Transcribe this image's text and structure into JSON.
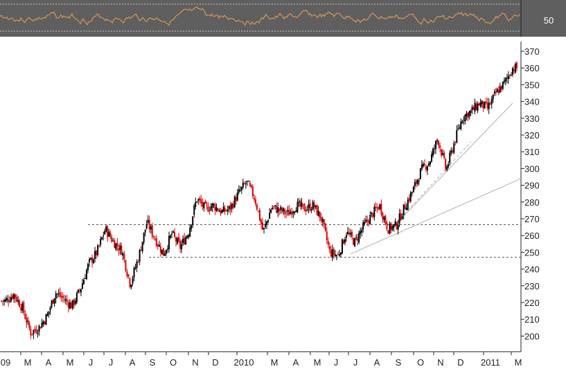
{
  "chart_data": {
    "type": "candlestick",
    "title": "",
    "xlabel": "",
    "ylabel": "",
    "ylim": [
      190,
      378
    ],
    "y_ticks": [
      200,
      210,
      220,
      230,
      240,
      250,
      260,
      270,
      280,
      290,
      300,
      310,
      320,
      330,
      340,
      350,
      360,
      370
    ],
    "x_tick_labels": [
      "09",
      "M",
      "A",
      "M",
      "J",
      "J",
      "A",
      "S",
      "O",
      "N",
      "D",
      "2010",
      "M",
      "A",
      "M",
      "J",
      "J",
      "A",
      "S",
      "O",
      "N",
      "D",
      "2011",
      "M"
    ],
    "grid": false,
    "legend": "none",
    "colors": {
      "up": "#000000",
      "down": "#e00000",
      "oscillator_line": "#f0a050",
      "oscillator_bg": "#5f5f5f",
      "trendline": "#b0b0b0"
    },
    "price_path": [
      [
        0,
        221
      ],
      [
        1,
        225
      ],
      [
        2,
        217
      ],
      [
        3,
        202
      ],
      [
        4,
        205
      ],
      [
        5,
        212
      ],
      [
        6,
        226
      ],
      [
        7,
        222
      ],
      [
        8,
        218
      ],
      [
        9,
        228
      ],
      [
        10,
        243
      ],
      [
        11,
        250
      ],
      [
        12,
        264
      ],
      [
        13,
        256
      ],
      [
        14,
        251
      ],
      [
        15,
        231
      ],
      [
        16,
        247
      ],
      [
        17,
        268
      ],
      [
        18,
        258
      ],
      [
        19,
        249
      ],
      [
        20,
        261
      ],
      [
        21,
        253
      ],
      [
        22,
        262
      ],
      [
        23,
        282
      ],
      [
        24,
        276
      ],
      [
        25,
        278
      ],
      [
        26,
        274
      ],
      [
        27,
        276
      ],
      [
        28,
        285
      ],
      [
        29,
        292
      ],
      [
        30,
        282
      ],
      [
        31,
        262
      ],
      [
        32,
        277
      ],
      [
        33,
        275
      ],
      [
        34,
        273
      ],
      [
        35,
        278
      ],
      [
        36,
        276
      ],
      [
        37,
        278
      ],
      [
        38,
        270
      ],
      [
        39,
        250
      ],
      [
        40,
        248
      ],
      [
        41,
        262
      ],
      [
        42,
        256
      ],
      [
        43,
        265
      ],
      [
        44,
        272
      ],
      [
        45,
        278
      ],
      [
        46,
        264
      ],
      [
        47,
        266
      ],
      [
        48,
        277
      ],
      [
        49,
        287
      ],
      [
        50,
        299
      ],
      [
        51,
        304
      ],
      [
        52,
        318
      ],
      [
        53,
        299
      ],
      [
        54,
        316
      ],
      [
        55,
        331
      ],
      [
        56,
        334
      ],
      [
        57,
        339
      ],
      [
        58,
        336
      ],
      [
        59,
        345
      ],
      [
        60,
        351
      ],
      [
        61,
        360
      ]
    ],
    "horizontal_levels": [
      266.5,
      247
    ],
    "trendlines": [
      {
        "from": [
          41.5,
          249
        ],
        "to": [
          73,
          294
        ]
      },
      {
        "from": [
          46,
          262
        ],
        "to": [
          61,
          339
        ]
      },
      {
        "from": [
          46,
          262
        ],
        "to": [
          56,
          316
        ]
      }
    ],
    "oscillator": {
      "tick_label": "50",
      "reference_label": "50"
    }
  }
}
